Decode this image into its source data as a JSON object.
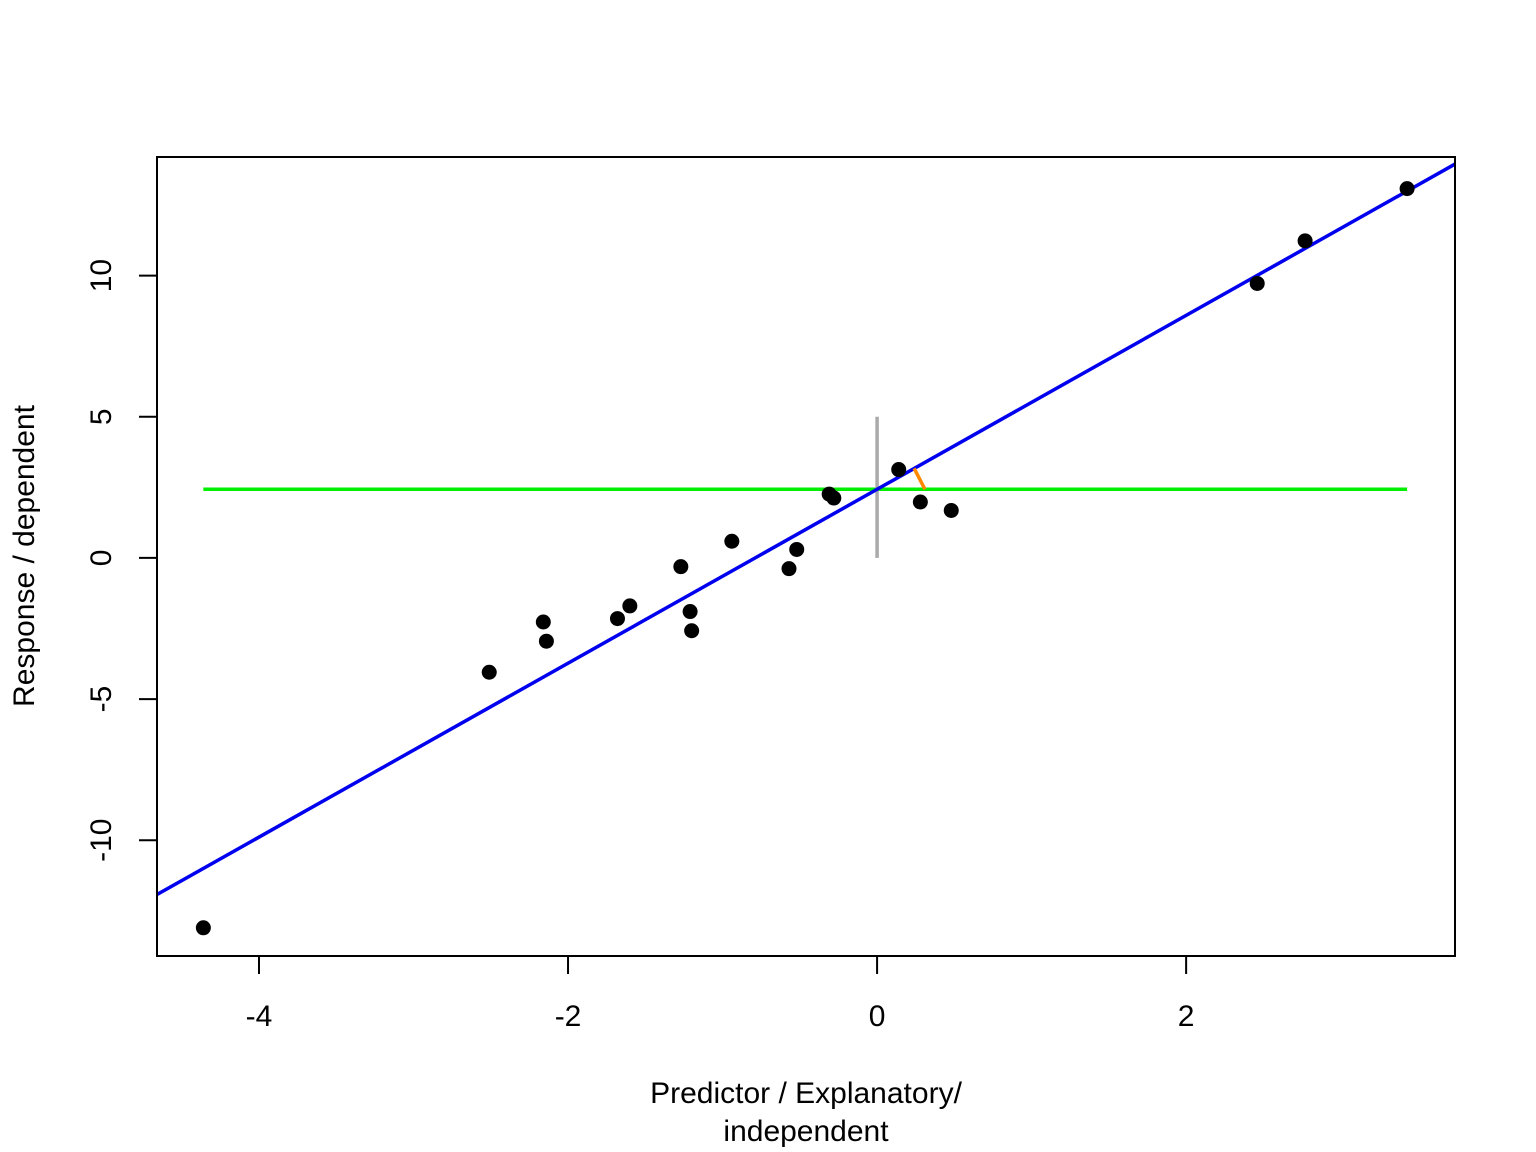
{
  "chart_data": {
    "type": "scatter",
    "title": "",
    "xlabel_lines": [
      "Predictor / Explanatory/",
      "independent"
    ],
    "ylabel": "Response / dependent",
    "xlim": [
      -4.66,
      3.74
    ],
    "ylim": [
      -14.1,
      14.2
    ],
    "x_ticks": [
      -4,
      -2,
      0,
      2
    ],
    "x_tick_labels": [
      "-4",
      "-2",
      "0",
      "2"
    ],
    "y_ticks": [
      -10,
      -5,
      0,
      5,
      10
    ],
    "y_tick_labels": [
      "-10",
      "-5",
      "0",
      "5",
      "10"
    ],
    "grid": false,
    "legend": "none",
    "points": [
      {
        "x": -4.36,
        "y": -13.1
      },
      {
        "x": -2.51,
        "y": -4.05
      },
      {
        "x": -2.16,
        "y": -2.27
      },
      {
        "x": -2.14,
        "y": -2.95
      },
      {
        "x": -1.68,
        "y": -2.15
      },
      {
        "x": -1.6,
        "y": -1.7
      },
      {
        "x": -1.27,
        "y": -0.31
      },
      {
        "x": -1.21,
        "y": -1.9
      },
      {
        "x": -1.2,
        "y": -2.58
      },
      {
        "x": -0.94,
        "y": 0.59
      },
      {
        "x": -0.57,
        "y": -0.38
      },
      {
        "x": -0.52,
        "y": 0.3
      },
      {
        "x": -0.31,
        "y": 2.26
      },
      {
        "x": -0.28,
        "y": 2.12
      },
      {
        "x": 0.14,
        "y": 3.13
      },
      {
        "x": 0.28,
        "y": 1.98
      },
      {
        "x": 0.48,
        "y": 1.68
      },
      {
        "x": 2.46,
        "y": 9.72
      },
      {
        "x": 2.77,
        "y": 11.23
      },
      {
        "x": 3.43,
        "y": 13.08
      }
    ],
    "regression_line": {
      "intercept": 2.43,
      "slope": 3.08,
      "color": "#0000ee"
    },
    "mean_line": {
      "y": 2.43,
      "x_from": -4.36,
      "x_to": 3.43,
      "color": "#00ee00"
    },
    "vertical_segment": {
      "x": 0,
      "y_from": 0,
      "y_to": 5,
      "color": "#aaaaaa"
    },
    "residual_segment": {
      "x1": 0.24,
      "y1": 3.17,
      "x2": 0.31,
      "y2": 2.43,
      "color": "#ff8800"
    },
    "point_color": "#000000"
  }
}
